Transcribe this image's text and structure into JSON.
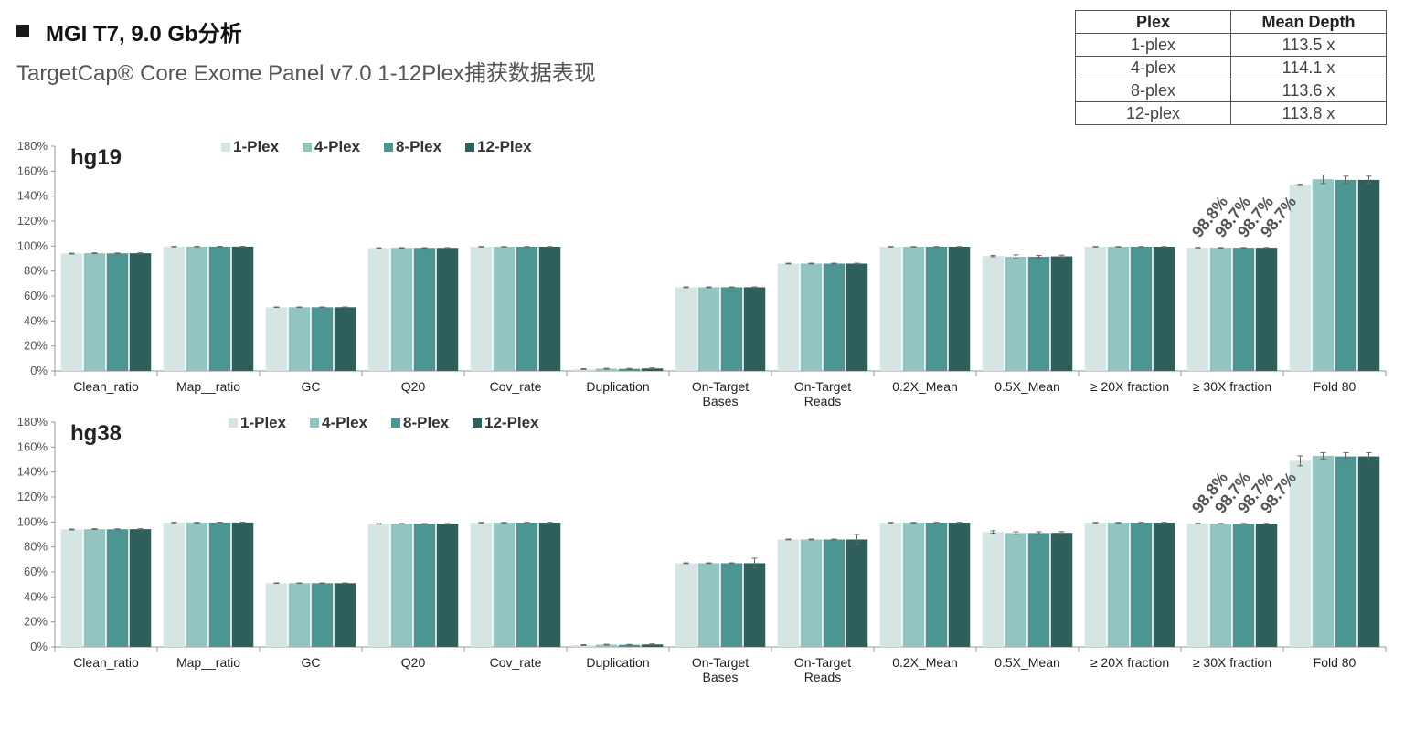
{
  "header": {
    "title": "MGI T7, 9.0 Gb分析",
    "subtitle": "TargetCap® Core Exome Panel v7.0 1-12Plex捕获数据表现"
  },
  "depth_table": {
    "headers": [
      "Plex",
      "Mean Depth"
    ],
    "rows": [
      [
        "1-plex",
        "113.5 x"
      ],
      [
        "4-plex",
        "114.1 x"
      ],
      [
        "8-plex",
        "113.6 x"
      ],
      [
        "12-plex",
        "113.8 x"
      ]
    ]
  },
  "colors": {
    "series": [
      "#d4e6e3",
      "#92c4c2",
      "#4c9593",
      "#2f5f5c"
    ],
    "axis": "#999999",
    "text": "#333333"
  },
  "chart_data": [
    {
      "type": "bar",
      "title": "hg19",
      "categories": [
        "Clean_ratio",
        "Map__ratio",
        "GC",
        "Q20",
        "Cov_rate",
        "Duplication",
        "On-Target\nBases",
        "On-Target\nReads",
        "0.2X_Mean",
        "0.5X_Mean",
        "≥ 20X fraction",
        "≥ 30X fraction",
        "Fold 80"
      ],
      "ylim": [
        0,
        180
      ],
      "yticks": [
        0,
        20,
        40,
        60,
        80,
        100,
        120,
        140,
        160,
        180
      ],
      "ytick_labels": [
        "0%",
        "20%",
        "40%",
        "60%",
        "80%",
        "100%",
        "120%",
        "140%",
        "160%",
        "180%"
      ],
      "legend": "top-left",
      "series": [
        {
          "name": "1-Plex",
          "values": [
            94,
            99.6,
            51,
            98.5,
            99.5,
            1.5,
            67,
            86,
            99.5,
            92,
            99.5,
            98.8,
            149
          ],
          "errors": [
            0.3,
            0.2,
            0.2,
            0.2,
            0.2,
            0.3,
            0.3,
            0.3,
            0.2,
            0.5,
            0.2,
            0.2,
            0.5
          ]
        },
        {
          "name": "4-Plex",
          "values": [
            94.3,
            99.6,
            51,
            98.6,
            99.5,
            1.8,
            67,
            86,
            99.5,
            91.5,
            99.5,
            98.7,
            153.5
          ],
          "errors": [
            0.3,
            0.2,
            0.2,
            0.2,
            0.2,
            0.3,
            0.3,
            0.3,
            0.2,
            1.5,
            0.2,
            0.2,
            3.5
          ]
        },
        {
          "name": "8-Plex",
          "values": [
            94.2,
            99.6,
            51,
            98.6,
            99.5,
            1.7,
            67,
            86,
            99.5,
            91.5,
            99.5,
            98.7,
            153
          ],
          "errors": [
            0.3,
            0.2,
            0.2,
            0.2,
            0.2,
            0.3,
            0.3,
            0.3,
            0.2,
            1.0,
            0.2,
            0.2,
            3.0
          ]
        },
        {
          "name": "12-Plex",
          "values": [
            94.3,
            99.6,
            51,
            98.6,
            99.5,
            2.0,
            67,
            86,
            99.5,
            91.8,
            99.5,
            98.7,
            153
          ],
          "errors": [
            0.3,
            0.2,
            0.2,
            0.2,
            0.2,
            0.4,
            0.3,
            0.3,
            0.2,
            1.0,
            0.2,
            0.2,
            3.0
          ]
        }
      ],
      "annotations": [
        {
          "category": "≥ 30X fraction",
          "series": "1-Plex",
          "text": "98.8%"
        },
        {
          "category": "≥ 30X fraction",
          "series": "4-Plex",
          "text": "98.7%"
        },
        {
          "category": "≥ 30X fraction",
          "series": "8-Plex",
          "text": "98.7%"
        },
        {
          "category": "≥ 30X fraction",
          "series": "12-Plex",
          "text": "98.7%"
        }
      ]
    },
    {
      "type": "bar",
      "title": "hg38",
      "categories": [
        "Clean_ratio",
        "Map__ratio",
        "GC",
        "Q20",
        "Cov_rate",
        "Duplication",
        "On-Target\nBases",
        "On-Target\nReads",
        "0.2X_Mean",
        "0.5X_Mean",
        "≥ 20X fraction",
        "≥ 30X fraction",
        "Fold 80"
      ],
      "ylim": [
        0,
        180
      ],
      "yticks": [
        0,
        20,
        40,
        60,
        80,
        100,
        120,
        140,
        160,
        180
      ],
      "ytick_labels": [
        "0%",
        "20%",
        "40%",
        "60%",
        "80%",
        "100%",
        "120%",
        "140%",
        "160%",
        "180%"
      ],
      "legend": "top-left",
      "series": [
        {
          "name": "1-Plex",
          "values": [
            94,
            99.6,
            51,
            98.5,
            99.5,
            1.5,
            67,
            86,
            99.5,
            92,
            99.5,
            98.8,
            149
          ],
          "errors": [
            0.3,
            0.2,
            0.2,
            0.2,
            0.2,
            0.3,
            0.3,
            0.3,
            0.2,
            1.0,
            0.2,
            0.2,
            4.0
          ]
        },
        {
          "name": "4-Plex",
          "values": [
            94.3,
            99.6,
            51,
            98.6,
            99.5,
            1.8,
            67,
            86,
            99.5,
            91.2,
            99.5,
            98.7,
            153
          ],
          "errors": [
            0.3,
            0.2,
            0.2,
            0.2,
            0.2,
            0.3,
            0.3,
            0.3,
            0.2,
            1.0,
            0.2,
            0.2,
            2.5
          ]
        },
        {
          "name": "8-Plex",
          "values": [
            94.2,
            99.6,
            51,
            98.6,
            99.5,
            1.7,
            67,
            86,
            99.5,
            91.2,
            99.5,
            98.7,
            152.5
          ],
          "errors": [
            0.3,
            0.2,
            0.2,
            0.2,
            0.2,
            0.3,
            0.3,
            0.3,
            0.2,
            1.0,
            0.2,
            0.2,
            3.0
          ]
        },
        {
          "name": "12-Plex",
          "values": [
            94.3,
            99.6,
            51,
            98.6,
            99.5,
            2.0,
            67,
            86,
            99.5,
            91.3,
            99.5,
            98.7,
            152.5
          ],
          "errors": [
            0.3,
            0.2,
            0.2,
            0.2,
            0.2,
            0.4,
            4.0,
            4.0,
            0.2,
            1.0,
            0.2,
            0.2,
            3.0
          ]
        }
      ],
      "annotations": [
        {
          "category": "≥ 30X fraction",
          "series": "1-Plex",
          "text": "98.8%"
        },
        {
          "category": "≥ 30X fraction",
          "series": "4-Plex",
          "text": "98.7%"
        },
        {
          "category": "≥ 30X fraction",
          "series": "8-Plex",
          "text": "98.7%"
        },
        {
          "category": "≥ 30X fraction",
          "series": "12-Plex",
          "text": "98.7%"
        }
      ]
    }
  ]
}
